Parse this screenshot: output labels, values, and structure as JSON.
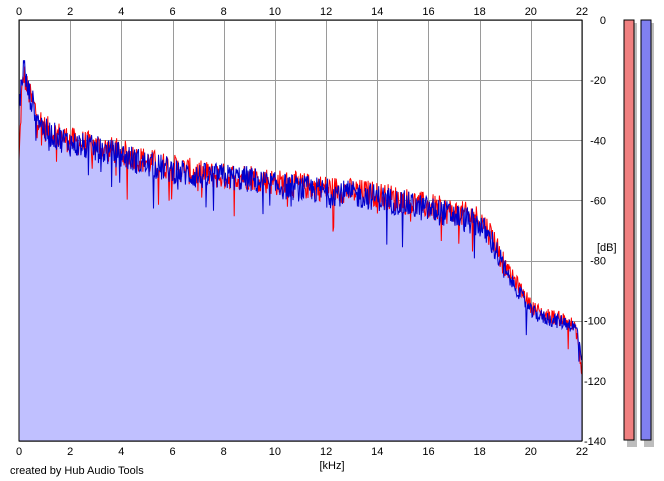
{
  "footer": {
    "credit": "created by Hub Audio Tools"
  },
  "chart_data": {
    "type": "line",
    "xlabel": "[kHz]",
    "ylabel": "[dB]",
    "xlim": [
      0,
      22
    ],
    "ylim": [
      -140,
      0
    ],
    "x_ticks": [
      "0",
      "2",
      "4",
      "6",
      "8",
      "10",
      "12",
      "14",
      "16",
      "18",
      "20",
      "22"
    ],
    "y_ticks": [
      "0",
      "-20",
      "-40",
      "-60",
      "-80",
      "-100",
      "-120",
      "-140"
    ],
    "grid": true,
    "fill_color": "#c0c0ff",
    "series": [
      {
        "color": "#ff0000",
        "x": [
          0,
          0.1,
          0.2,
          0.3,
          0.5,
          0.8,
          1,
          1.5,
          2,
          3,
          4,
          5,
          6,
          7,
          8,
          9,
          10,
          11,
          12,
          13,
          14,
          15,
          16,
          17,
          18,
          18.5,
          19,
          19.5,
          20,
          20.5,
          21,
          21.5,
          21.8,
          22
        ],
        "values": [
          -48,
          -25,
          -18,
          -22,
          -27,
          -33,
          -36,
          -38,
          -40,
          -42,
          -44,
          -47,
          -49,
          -51,
          -52,
          -52,
          -54,
          -55,
          -56,
          -57,
          -58,
          -60,
          -62,
          -64,
          -66,
          -72,
          -82,
          -88,
          -95,
          -98,
          -99,
          -100,
          -104,
          -118
        ]
      },
      {
        "color": "#0000cc",
        "x": [
          0,
          0.1,
          0.2,
          0.3,
          0.5,
          0.8,
          1,
          1.5,
          2,
          3,
          4,
          5,
          6,
          7,
          8,
          9,
          10,
          11,
          12,
          13,
          14,
          15,
          16,
          17,
          18,
          18.5,
          19,
          19.5,
          20,
          20.5,
          21,
          21.5,
          21.8,
          22
        ],
        "values": [
          -30,
          -20,
          -15,
          -22,
          -27,
          -33,
          -37,
          -39,
          -41,
          -43,
          -45,
          -48,
          -50,
          -52,
          -52,
          -53,
          -55,
          -56,
          -57,
          -58,
          -59,
          -61,
          -63,
          -65,
          -68,
          -74,
          -84,
          -90,
          -97,
          -99,
          -100,
          -101,
          -103,
          -112
        ]
      }
    ],
    "level_meters": [
      {
        "color": "#f08080"
      },
      {
        "color": "#8080f0"
      }
    ]
  }
}
